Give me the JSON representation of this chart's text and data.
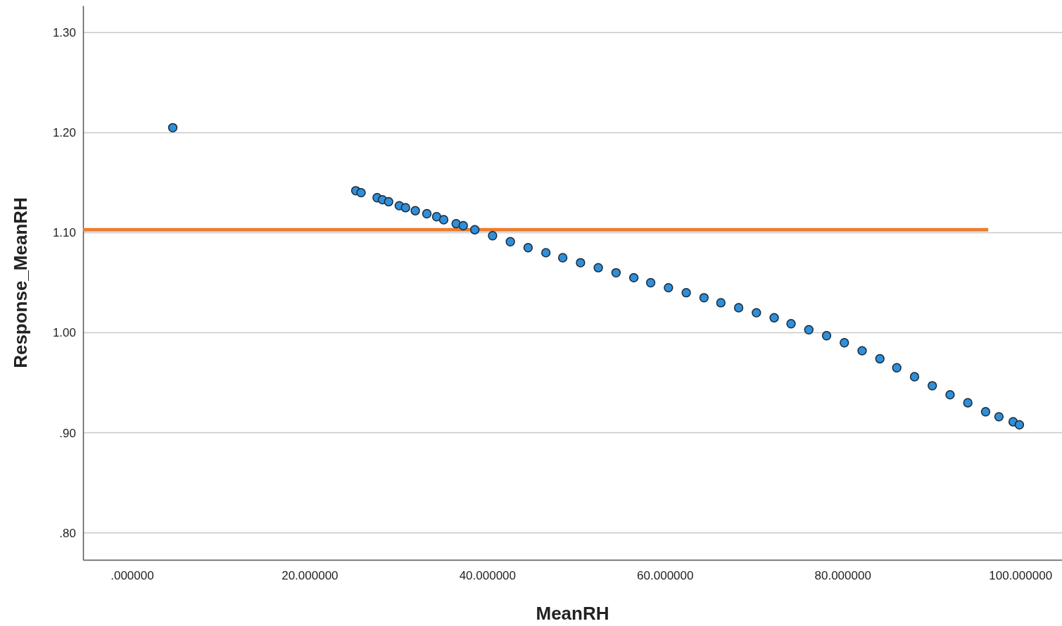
{
  "chart_data": {
    "type": "scatter",
    "xlabel": "MeanRH",
    "ylabel": "Response_MeanRH",
    "xlim": [
      -5.5,
      104.7
    ],
    "ylim": [
      0.773,
      1.327
    ],
    "xticks": [
      {
        "value": 0,
        "label": ".000000"
      },
      {
        "value": 20,
        "label": "20.000000"
      },
      {
        "value": 40,
        "label": "40.000000"
      },
      {
        "value": 60,
        "label": "60.000000"
      },
      {
        "value": 80,
        "label": "80.000000"
      },
      {
        "value": 100,
        "label": "100.000000"
      }
    ],
    "yticks": [
      {
        "value": 0.8,
        "label": ".80"
      },
      {
        "value": 0.9,
        "label": ".90"
      },
      {
        "value": 1.0,
        "label": "1.00"
      },
      {
        "value": 1.1,
        "label": "1.10"
      },
      {
        "value": 1.2,
        "label": "1.20"
      },
      {
        "value": 1.3,
        "label": "1.30"
      }
    ],
    "grid": "y",
    "marker": "circle",
    "series": [
      {
        "color": "#2f8fd8",
        "x": [
          4.6,
          25.2,
          25.8,
          27.6,
          28.2,
          28.9,
          30.1,
          30.8,
          31.9,
          33.2,
          34.3,
          35.1,
          36.5,
          37.3,
          38.6,
          40.6,
          42.6,
          44.6,
          46.6,
          48.5,
          50.5,
          52.5,
          54.5,
          56.5,
          58.4,
          60.4,
          62.4,
          64.4,
          66.3,
          68.3,
          70.3,
          72.3,
          74.2,
          76.2,
          78.2,
          80.2,
          82.2,
          84.2,
          86.1,
          88.1,
          90.1,
          92.1,
          94.1,
          96.1,
          97.6,
          99.2,
          99.9
        ],
        "values": [
          1.205,
          1.142,
          1.14,
          1.135,
          1.133,
          1.131,
          1.127,
          1.125,
          1.122,
          1.119,
          1.116,
          1.113,
          1.109,
          1.107,
          1.103,
          1.097,
          1.091,
          1.085,
          1.08,
          1.075,
          1.07,
          1.065,
          1.06,
          1.055,
          1.05,
          1.045,
          1.04,
          1.035,
          1.03,
          1.025,
          1.02,
          1.015,
          1.009,
          1.003,
          0.997,
          0.99,
          0.982,
          0.974,
          0.965,
          0.956,
          0.947,
          0.938,
          0.93,
          0.921,
          0.916,
          0.911,
          0.908
        ]
      },
      {
        "type": "line",
        "color": "#ed7d31",
        "x": [
          -5.5,
          96.4
        ],
        "values": [
          1.103,
          1.103
        ],
        "line_style": "solid",
        "marker": "none"
      }
    ]
  }
}
